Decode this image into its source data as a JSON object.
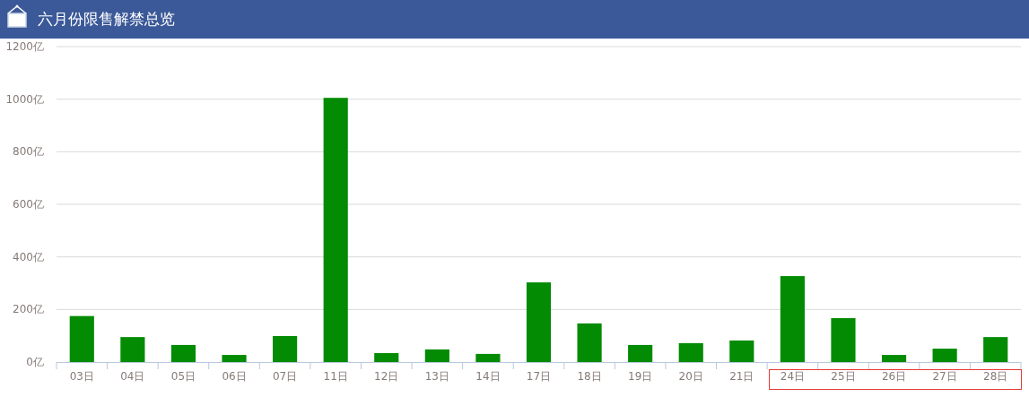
{
  "chart_data": {
    "type": "bar",
    "title": "六月份限售解禁总览",
    "categories": [
      "03日",
      "04日",
      "05日",
      "06日",
      "07日",
      "11日",
      "12日",
      "13日",
      "14日",
      "17日",
      "18日",
      "19日",
      "20日",
      "21日",
      "24日",
      "25日",
      "26日",
      "27日",
      "28日"
    ],
    "values": [
      175,
      95,
      65,
      27,
      99,
      1005,
      34,
      48,
      31,
      303,
      147,
      65,
      72,
      82,
      327,
      167,
      27,
      51,
      95
    ],
    "color": "#038b03",
    "ylim": [
      0,
      1200
    ],
    "yticks": [
      {
        "value": 0,
        "label": "0亿"
      },
      {
        "value": 200,
        "label": "200亿"
      },
      {
        "value": 400,
        "label": "400亿"
      },
      {
        "value": 600,
        "label": "600亿"
      },
      {
        "value": 800,
        "label": "800亿"
      },
      {
        "value": 1000,
        "label": "1000亿"
      },
      {
        "value": 1200,
        "label": "1200亿"
      }
    ],
    "grid": "y"
  }
}
